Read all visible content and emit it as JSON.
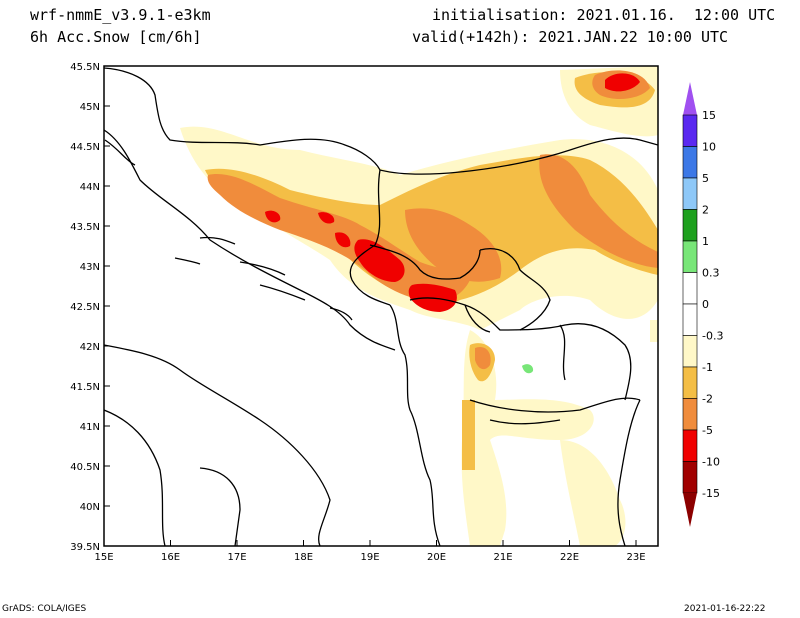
{
  "header": {
    "model": "wrf-nmmE_v3.9.1-e3km",
    "variable": "6h Acc.Snow [cm/6h]",
    "init": "initialisation: 2021.01.16.  12:00 UTC",
    "valid": "valid(+142h): 2021.JAN.22 10:00 UTC"
  },
  "map": {
    "lat_labels": [
      "45.5N",
      "45N",
      "44.5N",
      "44N",
      "43.5N",
      "43N",
      "42.5N",
      "42N",
      "41.5N",
      "41N",
      "40.5N",
      "40N",
      "39.5N"
    ],
    "lon_labels": [
      "15E",
      "16E",
      "17E",
      "18E",
      "19E",
      "20E",
      "21E",
      "22E",
      "23E"
    ]
  },
  "colorbar": {
    "labels": [
      "15",
      "10",
      "5",
      "2",
      "1",
      "0.3",
      "0",
      "-0.3",
      "-1",
      "-2",
      "-5",
      "-10",
      "-15"
    ],
    "colors": [
      "#5a28f0",
      "#3c78e6",
      "#8ec8f8",
      "#1ea01e",
      "#78e678",
      "#ffffff",
      "#ffffff",
      "#fff8c8",
      "#f4be46",
      "#f08c3c",
      "#f00000",
      "#a00000"
    ],
    "top_arrow": "#a050f0",
    "bottom_arrow": "#8c0000"
  },
  "footer": {
    "credit": "GrADS: COLA/IGES",
    "timestamp": "2021-01-16-22:22"
  }
}
